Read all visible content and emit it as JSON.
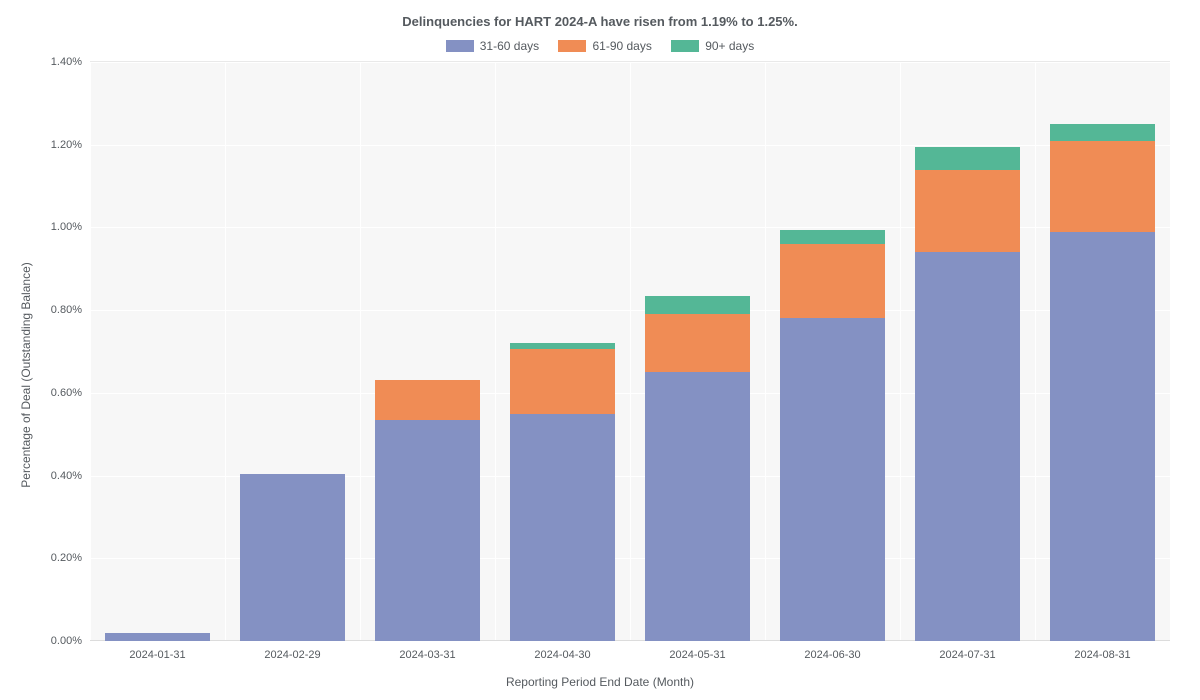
{
  "chart": {
    "type": "stacked-bar",
    "title": "Delinquencies for HART 2024-A have risen from 1.19% to 1.25%.",
    "title_fontsize": 13,
    "title_color": "#555a5f",
    "xlabel": "Reporting Period End Date (Month)",
    "ylabel": "Percentage of Deal (Outstanding Balance)",
    "label_fontsize": 12,
    "tick_fontsize": 11,
    "background_color": "#ffffff",
    "grid_color": "#ffffff",
    "grid_band_color": "#f7f7f7",
    "baseline_color": "#dcdcdc",
    "ylim": [
      0,
      1.4
    ],
    "ytick_step": 0.2,
    "ytick_labels": [
      "0.00%",
      "0.20%",
      "0.40%",
      "0.60%",
      "0.80%",
      "1.00%",
      "1.20%",
      "1.40%"
    ],
    "categories": [
      "2024-01-31",
      "2024-02-29",
      "2024-03-31",
      "2024-04-30",
      "2024-05-31",
      "2024-06-30",
      "2024-07-31",
      "2024-08-31"
    ],
    "series": [
      {
        "name": "31-60 days",
        "color": "#8491c3",
        "values": [
          0.02,
          0.405,
          0.535,
          0.55,
          0.65,
          0.78,
          0.94,
          0.99
        ]
      },
      {
        "name": "61-90 days",
        "color": "#f08c55",
        "values": [
          0.0,
          0.0,
          0.095,
          0.155,
          0.14,
          0.18,
          0.2,
          0.22
        ]
      },
      {
        "name": "90+ days",
        "color": "#54b796",
        "values": [
          0.0,
          0.0,
          0.0,
          0.015,
          0.045,
          0.035,
          0.055,
          0.04
        ]
      }
    ],
    "bar_width_ratio": 0.78,
    "legend_swatch_w": 28,
    "legend_swatch_h": 12
  }
}
